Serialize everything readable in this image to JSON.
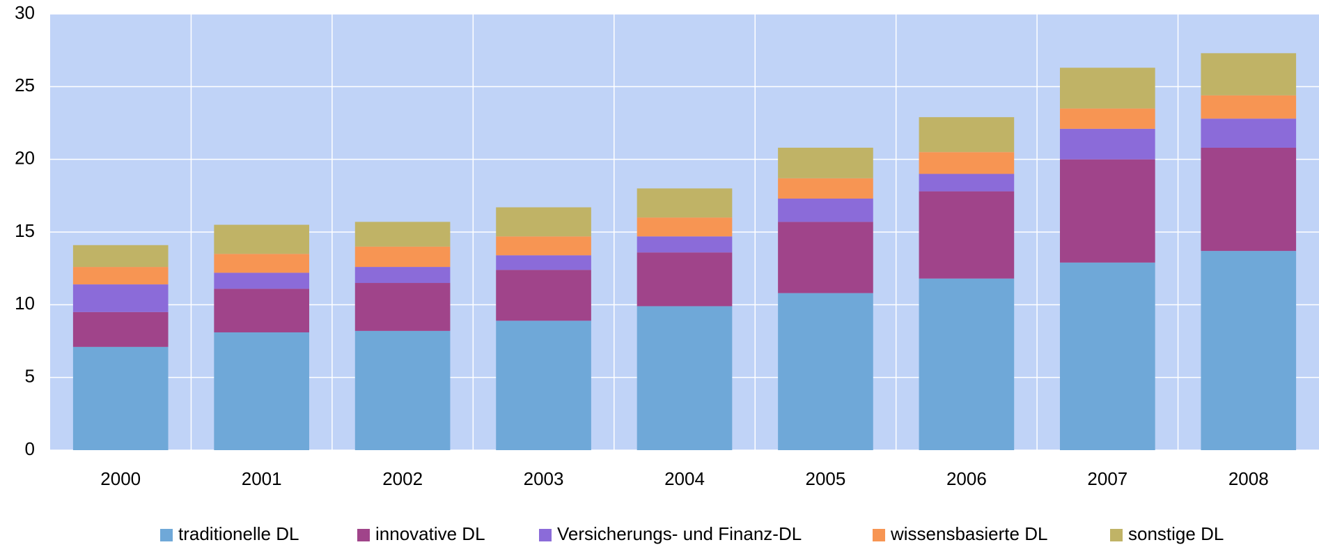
{
  "chart_data": {
    "type": "stacked_bar",
    "categories": [
      "2000",
      "2001",
      "2002",
      "2003",
      "2004",
      "2005",
      "2006",
      "2007",
      "2008"
    ],
    "series": [
      {
        "name": "traditionelle DL",
        "color": "#6fa8d8",
        "values": [
          7.1,
          8.1,
          8.2,
          8.9,
          9.9,
          10.8,
          11.8,
          12.9,
          13.7
        ]
      },
      {
        "name": "innovative DL",
        "color": "#a0448a",
        "values": [
          2.4,
          3.0,
          3.3,
          3.5,
          3.7,
          4.9,
          6.0,
          7.1,
          7.1
        ]
      },
      {
        "name": "Versicherungs- und Finanz-DL",
        "color": "#8b6bd9",
        "values": [
          1.9,
          1.1,
          1.1,
          1.0,
          1.1,
          1.6,
          1.2,
          2.1,
          2.0
        ]
      },
      {
        "name": "wissensbasierte DL",
        "color": "#f79553",
        "values": [
          1.2,
          1.3,
          1.4,
          1.3,
          1.3,
          1.4,
          1.5,
          1.4,
          1.6
        ]
      },
      {
        "name": "sonstige DL",
        "color": "#c0b366",
        "values": [
          1.5,
          2.0,
          1.7,
          2.0,
          2.0,
          2.1,
          2.4,
          2.8,
          2.9
        ]
      }
    ],
    "ylim": [
      0,
      30
    ],
    "yticks": [
      0,
      5,
      10,
      15,
      20,
      25,
      30
    ],
    "grid": true,
    "legend": "bottom"
  }
}
